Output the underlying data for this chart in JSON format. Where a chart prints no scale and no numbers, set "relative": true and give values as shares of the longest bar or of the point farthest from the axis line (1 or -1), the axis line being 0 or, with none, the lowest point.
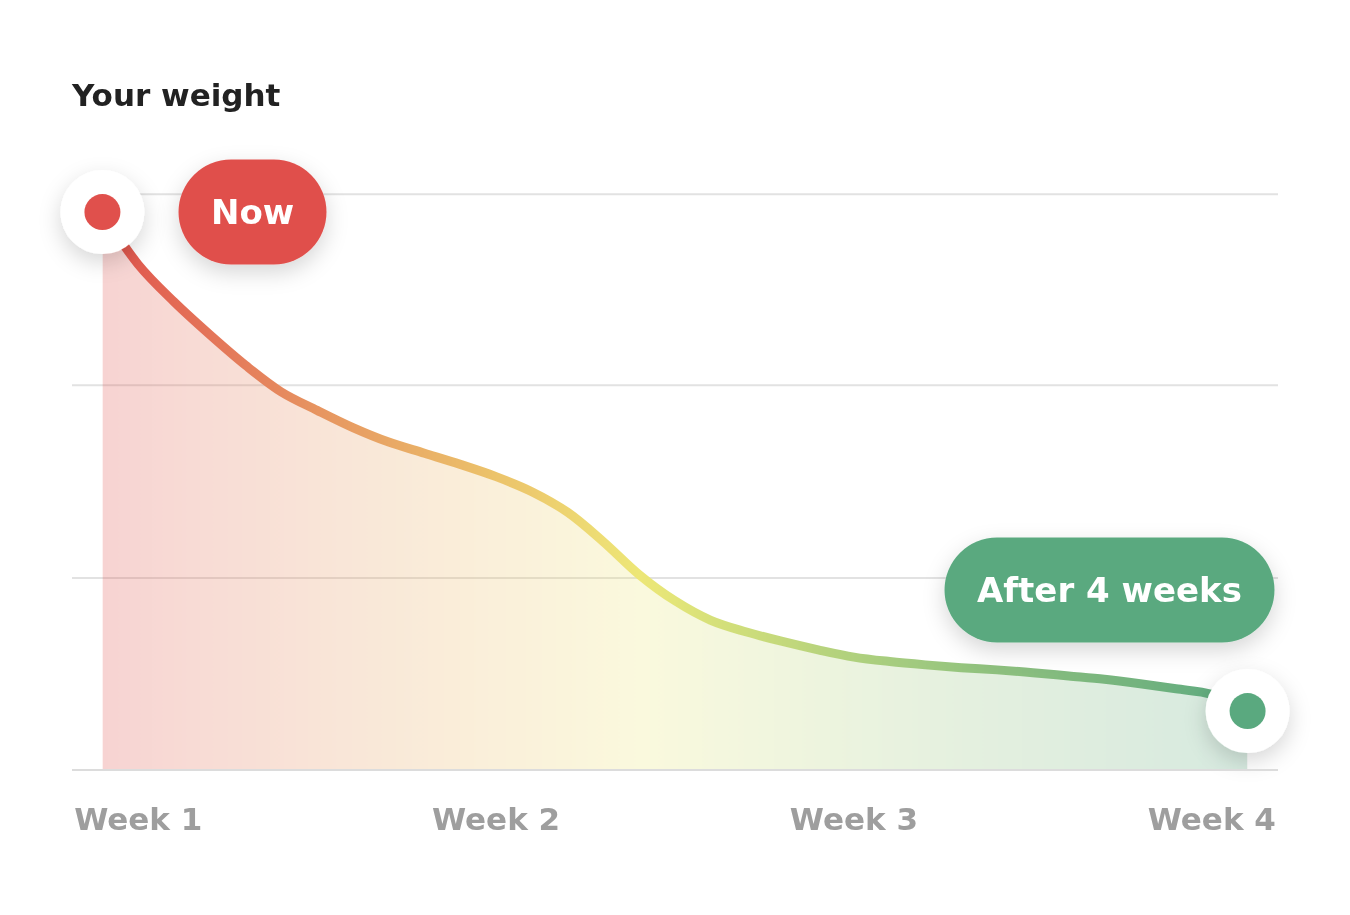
{
  "chart_data": {
    "type": "area",
    "title": "Your weight",
    "relative": true,
    "categories": [
      null,
      "Week 1",
      null,
      null,
      null,
      null,
      null,
      null,
      null,
      null,
      null,
      "Week 2",
      null,
      null,
      null,
      null,
      null,
      null,
      null,
      null,
      null,
      "Week 3",
      null,
      null,
      null,
      null,
      null,
      null,
      null,
      null,
      null,
      "Week 4",
      null
    ],
    "series": [
      {
        "values": [
          1.0,
          0.906,
          0.839,
          0.78,
          0.725,
          0.677,
          0.644,
          0.613,
          0.587,
          0.567,
          0.547,
          0.525,
          0.498,
          0.461,
          0.408,
          0.349,
          0.302,
          0.267,
          0.246,
          0.229,
          0.214,
          0.201,
          0.193,
          0.187,
          0.182,
          0.178,
          0.173,
          0.167,
          0.161,
          0.153,
          0.144,
          0.134,
          0.104
        ],
        "colors": [
          "#e0504c",
          "#e15d50",
          "#e36a55",
          "#e47559",
          "#e57f5c",
          "#e6895e",
          "#e79561",
          "#e89e63",
          "#e9a865",
          "#eab167",
          "#ebba69",
          "#ecc46b",
          "#edcb6e",
          "#edd571",
          "#eede75",
          "#ede777",
          "#e3e579",
          "#d7e17a",
          "#cddd7b",
          "#c4d97c",
          "#b9d47d",
          "#b0d17e",
          "#a7cd7f",
          "#9fc97f",
          "#96c57e",
          "#8ec07e",
          "#88bd7e",
          "#81ba7e",
          "#7ab67e",
          "#73b37e",
          "#6bb07f",
          "#63ad7f",
          "#5aa97f"
        ]
      },
      {
        "type": "scatter",
        "marker": "circle",
        "values": [
          1.0,
          null,
          null,
          null,
          null,
          null,
          null,
          null,
          null,
          null,
          null,
          null,
          null,
          null,
          null,
          null,
          null,
          null,
          null,
          null,
          null,
          null,
          null,
          null,
          null,
          null,
          null,
          null,
          null,
          null,
          null,
          null,
          0.104
        ],
        "colors": [
          "#e0504c",
          null,
          null,
          null,
          null,
          null,
          null,
          null,
          null,
          null,
          null,
          null,
          null,
          null,
          null,
          null,
          null,
          null,
          null,
          null,
          null,
          null,
          null,
          null,
          null,
          null,
          null,
          null,
          null,
          null,
          null,
          null,
          "#5aa97f"
        ]
      }
    ],
    "ref_lines": [
      {
        "axis": "y",
        "value": 0.343,
        "color": "#e2e2e2"
      },
      {
        "axis": "y",
        "value": 0.689,
        "color": "#e2e2e2"
      },
      {
        "axis": "y",
        "value": 1.032,
        "color": "#e2e2e2"
      }
    ],
    "annotations": [
      "Now",
      "After 4 weeks"
    ],
    "tick_labels": "x",
    "line_style": "solid"
  }
}
